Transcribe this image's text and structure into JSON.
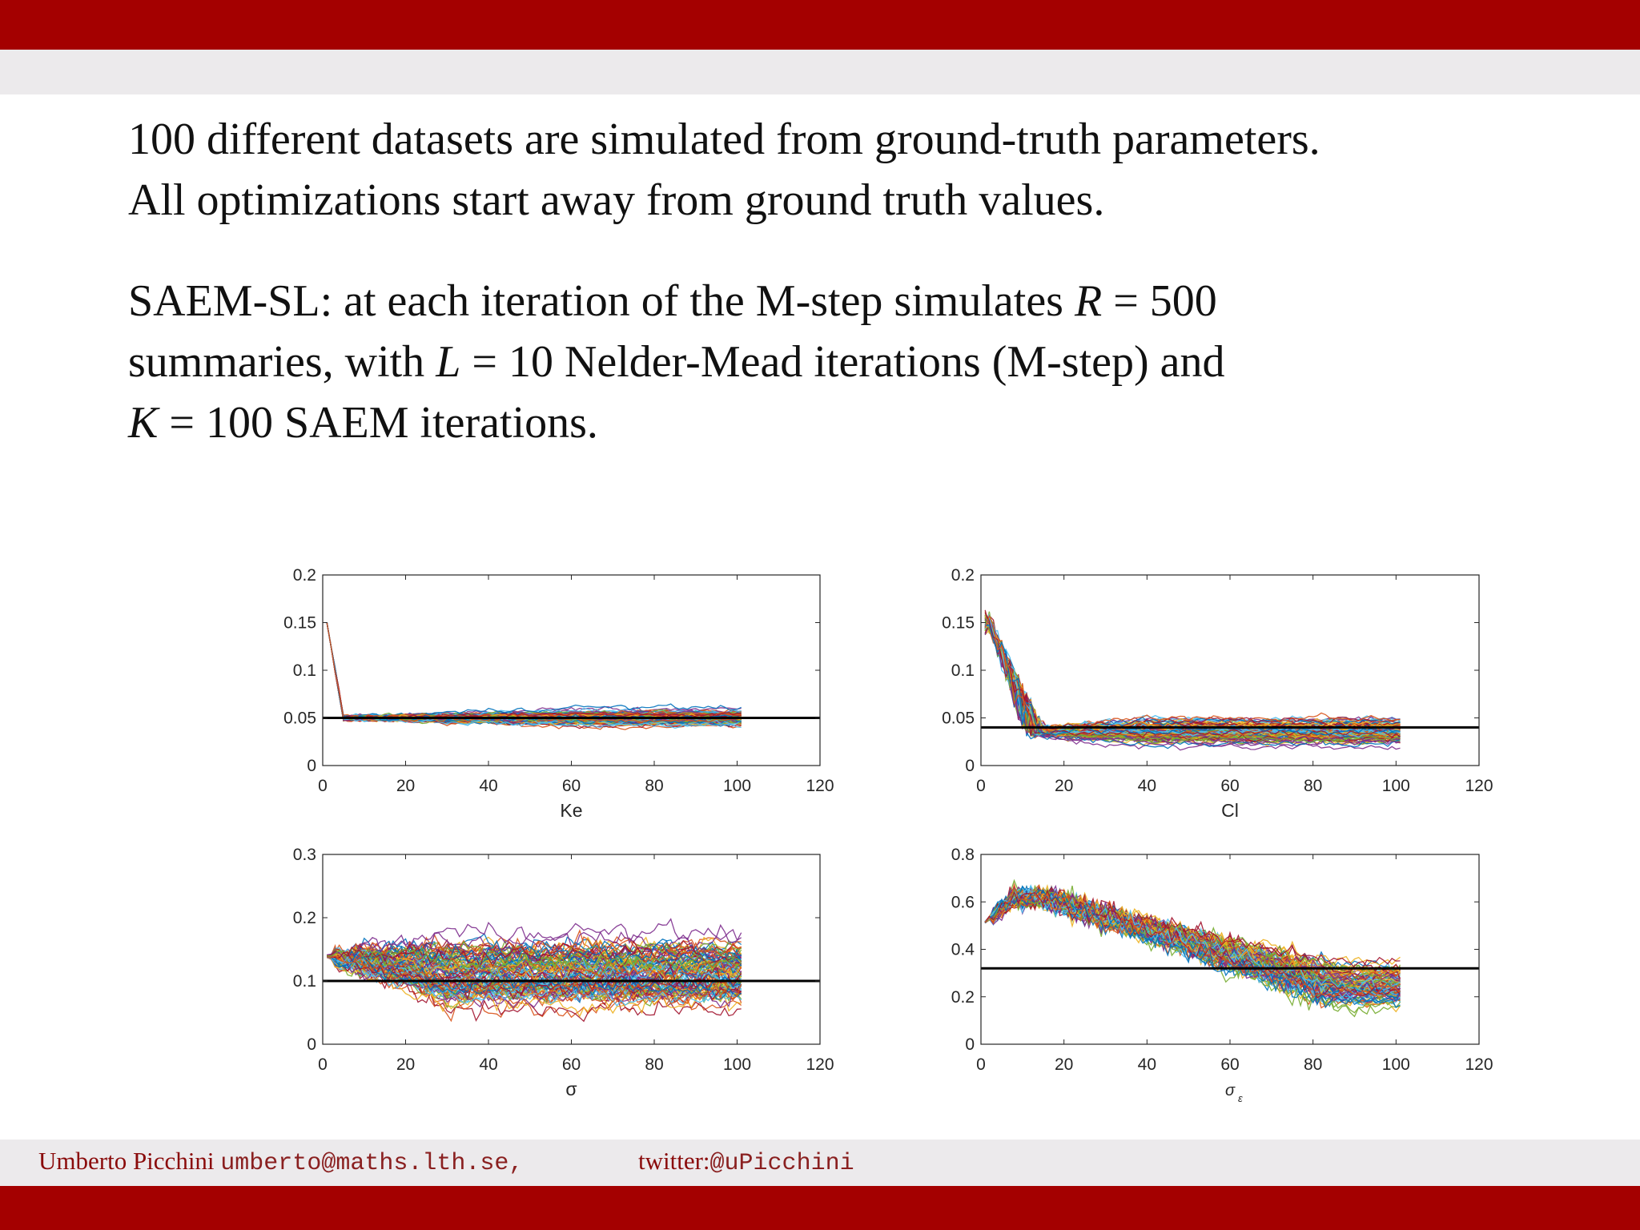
{
  "slide": {
    "intro_lines": [
      "100 different datasets are simulated from ground-truth parameters.",
      "All optimizations start away from ground truth values."
    ],
    "saem": {
      "line1_prefix": "SAEM-SL: at each iteration of the M-step simulates",
      "R_symbol": "R",
      "R_value": "500",
      "line2_prefix": "summaries, with",
      "L_symbol": "L",
      "L_value": "10",
      "line2_suffix": "Nelder-Mead iterations (M-step) and",
      "K_symbol": "K",
      "K_value": "100",
      "line3_suffix": "SAEM iterations.",
      "equals": "="
    }
  },
  "footer": {
    "author": "Umberto Picchini",
    "email": "umberto@maths.lth.se,",
    "twitter_label": "twitter:",
    "twitter_handle": "@uPicchini"
  },
  "chart_data": [
    {
      "type": "line",
      "xlabel": "Ke",
      "xlim": [
        0,
        120
      ],
      "ylim": [
        0,
        0.2
      ],
      "xticks": [
        "0",
        "20",
        "40",
        "60",
        "80",
        "100",
        "120"
      ],
      "yticks": [
        "0",
        "0.05",
        "0.1",
        "0.15",
        "0.2"
      ],
      "ground_truth": 0.05,
      "series_count": 100,
      "iterations": 100,
      "start_value": 0.15,
      "plateau_mean": 0.05,
      "plateau_spread": 0.03
    },
    {
      "type": "line",
      "xlabel": "Cl",
      "xlim": [
        0,
        120
      ],
      "ylim": [
        0,
        0.2
      ],
      "xticks": [
        "0",
        "20",
        "40",
        "60",
        "80",
        "100",
        "120"
      ],
      "yticks": [
        "0",
        "0.05",
        "0.1",
        "0.15",
        "0.2"
      ],
      "ground_truth": 0.04,
      "series_count": 100,
      "iterations": 100,
      "start_value": 0.15,
      "plateau_mean": 0.035,
      "plateau_spread": 0.04
    },
    {
      "type": "line",
      "xlabel": "σ",
      "xlim": [
        0,
        120
      ],
      "ylim": [
        0,
        0.3
      ],
      "xticks": [
        "0",
        "20",
        "40",
        "60",
        "80",
        "100",
        "120"
      ],
      "yticks": [
        "0",
        "0.1",
        "0.2",
        "0.3"
      ],
      "ground_truth": 0.1,
      "series_count": 100,
      "iterations": 100,
      "start_value": 0.14,
      "plateau_mean": 0.11,
      "plateau_spread": 0.18
    },
    {
      "type": "line",
      "xlabel": "σ",
      "xlabel_subscript": "ε",
      "xlim": [
        0,
        120
      ],
      "ylim": [
        0,
        0.8
      ],
      "xticks": [
        "0",
        "20",
        "40",
        "60",
        "80",
        "100",
        "120"
      ],
      "yticks": [
        "0",
        "0.2",
        "0.4",
        "0.6",
        "0.8"
      ],
      "ground_truth": 0.32,
      "series_count": 100,
      "iterations": 100,
      "start_value": 0.5,
      "plateau_mean": 0.25,
      "plateau_spread": 0.3
    }
  ]
}
